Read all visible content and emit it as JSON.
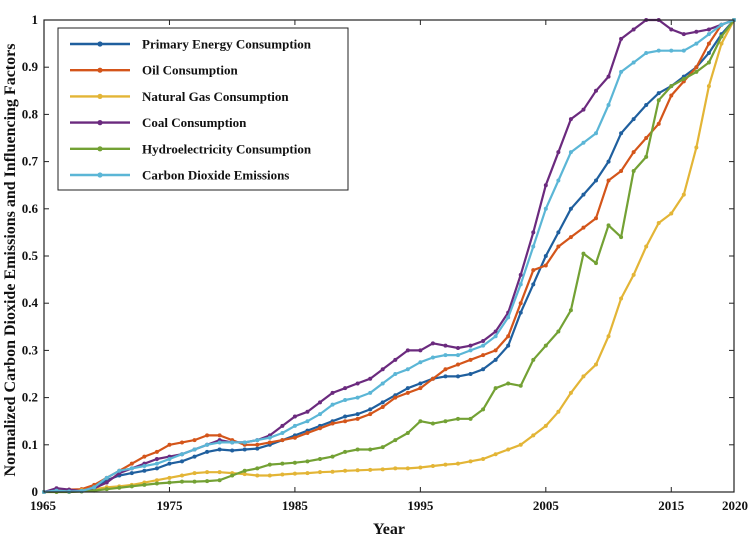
{
  "chart_data": {
    "type": "line",
    "title": "",
    "xlabel": "Year",
    "ylabel": "Normalized Carbon Dioxide Emissions and Influencing Factors",
    "xlim": [
      1965,
      2020
    ],
    "ylim": [
      0,
      1
    ],
    "xticks": [
      1965,
      1975,
      1985,
      1995,
      2005,
      2015,
      2020
    ],
    "yticks": [
      0,
      0.1,
      0.2,
      0.3,
      0.4,
      0.5,
      0.6,
      0.7,
      0.8,
      0.9,
      1
    ],
    "grid": false,
    "legend_position": "top-left",
    "x": [
      1965,
      1966,
      1967,
      1968,
      1969,
      1970,
      1971,
      1972,
      1973,
      1974,
      1975,
      1976,
      1977,
      1978,
      1979,
      1980,
      1981,
      1982,
      1983,
      1984,
      1985,
      1986,
      1987,
      1988,
      1989,
      1990,
      1991,
      1992,
      1993,
      1994,
      1995,
      1996,
      1997,
      1998,
      1999,
      2000,
      2001,
      2002,
      2003,
      2004,
      2005,
      2006,
      2007,
      2008,
      2009,
      2010,
      2011,
      2012,
      2013,
      2014,
      2015,
      2016,
      2017,
      2018,
      2019,
      2020
    ],
    "series": [
      {
        "name": "Primary Energy Consumption",
        "color": "#1f5f9e",
        "values": [
          0,
          0.005,
          0.002,
          0.003,
          0.01,
          0.025,
          0.035,
          0.04,
          0.045,
          0.05,
          0.06,
          0.065,
          0.075,
          0.085,
          0.09,
          0.088,
          0.09,
          0.092,
          0.1,
          0.11,
          0.12,
          0.13,
          0.14,
          0.15,
          0.16,
          0.165,
          0.175,
          0.19,
          0.205,
          0.22,
          0.23,
          0.24,
          0.245,
          0.245,
          0.25,
          0.26,
          0.28,
          0.31,
          0.38,
          0.44,
          0.5,
          0.55,
          0.6,
          0.63,
          0.66,
          0.7,
          0.76,
          0.79,
          0.82,
          0.845,
          0.86,
          0.88,
          0.9,
          0.93,
          0.97,
          1
        ]
      },
      {
        "name": "Oil Consumption",
        "color": "#d4551a",
        "values": [
          0,
          0.004,
          0.005,
          0.006,
          0.015,
          0.03,
          0.045,
          0.06,
          0.075,
          0.085,
          0.1,
          0.105,
          0.11,
          0.12,
          0.12,
          0.11,
          0.1,
          0.1,
          0.105,
          0.11,
          0.115,
          0.125,
          0.135,
          0.145,
          0.15,
          0.155,
          0.165,
          0.18,
          0.2,
          0.21,
          0.22,
          0.24,
          0.26,
          0.27,
          0.28,
          0.29,
          0.3,
          0.33,
          0.4,
          0.47,
          0.48,
          0.52,
          0.54,
          0.56,
          0.58,
          0.66,
          0.68,
          0.72,
          0.75,
          0.78,
          0.84,
          0.87,
          0.9,
          0.95,
          0.99,
          1
        ]
      },
      {
        "name": "Natural Gas Consumption",
        "color": "#e3b536",
        "values": [
          0,
          0.001,
          0.002,
          0.004,
          0.006,
          0.01,
          0.012,
          0.015,
          0.02,
          0.025,
          0.03,
          0.035,
          0.04,
          0.042,
          0.042,
          0.04,
          0.038,
          0.035,
          0.035,
          0.037,
          0.039,
          0.04,
          0.042,
          0.043,
          0.045,
          0.046,
          0.047,
          0.048,
          0.05,
          0.05,
          0.052,
          0.055,
          0.058,
          0.06,
          0.065,
          0.07,
          0.08,
          0.09,
          0.1,
          0.12,
          0.14,
          0.17,
          0.21,
          0.245,
          0.27,
          0.33,
          0.41,
          0.46,
          0.52,
          0.57,
          0.59,
          0.63,
          0.73,
          0.86,
          0.95,
          1
        ]
      },
      {
        "name": "Coal Consumption",
        "color": "#6b2a7e",
        "values": [
          0,
          0.008,
          0.005,
          0.002,
          0.008,
          0.02,
          0.04,
          0.05,
          0.06,
          0.07,
          0.075,
          0.08,
          0.09,
          0.1,
          0.11,
          0.105,
          0.105,
          0.11,
          0.12,
          0.14,
          0.16,
          0.17,
          0.19,
          0.21,
          0.22,
          0.23,
          0.24,
          0.26,
          0.28,
          0.3,
          0.3,
          0.315,
          0.31,
          0.305,
          0.31,
          0.32,
          0.34,
          0.38,
          0.46,
          0.55,
          0.65,
          0.72,
          0.79,
          0.81,
          0.85,
          0.88,
          0.96,
          0.98,
          1,
          1,
          0.98,
          0.97,
          0.975,
          0.98,
          0.99,
          1
        ]
      },
      {
        "name": "Hydroelectricity Consumption",
        "color": "#73a134",
        "values": [
          0,
          0,
          0,
          0.001,
          0.003,
          0.006,
          0.009,
          0.012,
          0.015,
          0.018,
          0.02,
          0.022,
          0.022,
          0.023,
          0.025,
          0.035,
          0.045,
          0.05,
          0.058,
          0.06,
          0.062,
          0.065,
          0.07,
          0.075,
          0.085,
          0.09,
          0.09,
          0.095,
          0.11,
          0.125,
          0.15,
          0.145,
          0.15,
          0.155,
          0.155,
          0.175,
          0.22,
          0.23,
          0.225,
          0.28,
          0.31,
          0.34,
          0.385,
          0.505,
          0.485,
          0.565,
          0.54,
          0.68,
          0.71,
          0.83,
          0.86,
          0.875,
          0.89,
          0.91,
          0.965,
          1
        ]
      },
      {
        "name": "Carbon Dioxide Emissions",
        "color": "#5bb6d6",
        "values": [
          0,
          0.003,
          0.001,
          0.002,
          0.01,
          0.03,
          0.045,
          0.05,
          0.055,
          0.06,
          0.07,
          0.08,
          0.09,
          0.1,
          0.105,
          0.105,
          0.105,
          0.11,
          0.115,
          0.125,
          0.14,
          0.15,
          0.165,
          0.185,
          0.195,
          0.2,
          0.21,
          0.23,
          0.25,
          0.26,
          0.275,
          0.285,
          0.29,
          0.29,
          0.3,
          0.31,
          0.33,
          0.37,
          0.44,
          0.52,
          0.6,
          0.66,
          0.72,
          0.74,
          0.76,
          0.82,
          0.89,
          0.91,
          0.93,
          0.935,
          0.935,
          0.935,
          0.95,
          0.97,
          0.99,
          1
        ]
      }
    ]
  }
}
